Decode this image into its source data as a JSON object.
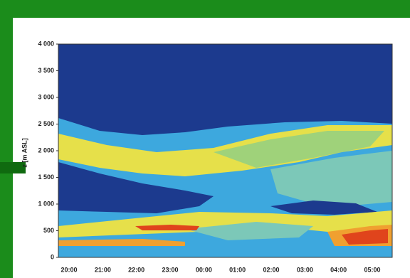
{
  "chart_data": {
    "type": "heatmap",
    "y_label": "z [m ASL]",
    "categories": [
      "20:00",
      "21:00",
      "22:00",
      "23:00",
      "00:00",
      "01:00",
      "02:00",
      "03:00",
      "04:00",
      "05:00"
    ],
    "ylim": [
      0,
      4000
    ],
    "yticks": [
      0,
      500,
      {
        "value": 1000,
        "label": "1 000"
      },
      {
        "value": 1500,
        "label": "1 500"
      },
      {
        "value": 2000,
        "label": "2 000"
      },
      {
        "value": 2500,
        "label": "2 500"
      },
      {
        "value": 3000,
        "label": "3 000"
      },
      {
        "value": 3500,
        "label": "3 500"
      },
      {
        "value": 4000,
        "label": "4 000"
      }
    ]
  }
}
